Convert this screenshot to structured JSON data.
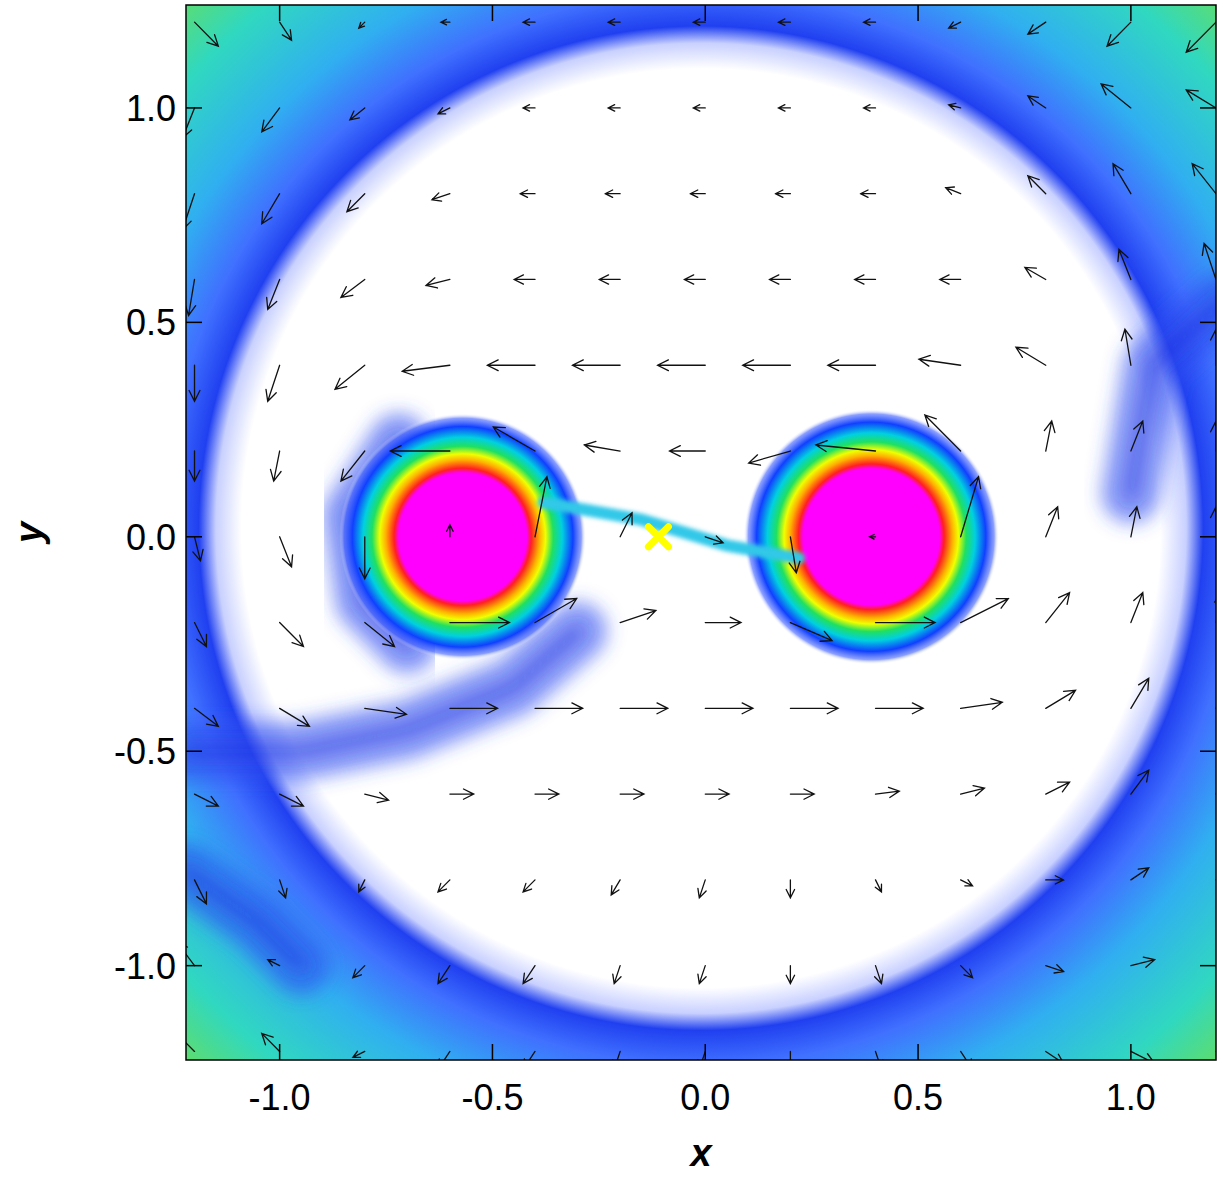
{
  "chart_data": {
    "type": "vector_field",
    "x_label": "x",
    "y_label": "y",
    "xlim": [
      -1.22,
      1.2
    ],
    "ylim": [
      -1.22,
      1.24
    ],
    "xticks": [
      {
        "value": -1,
        "label": "-1.0"
      },
      {
        "value": -0.5,
        "label": "-0.5"
      },
      {
        "value": 0,
        "label": "0.0"
      },
      {
        "value": 0.5,
        "label": "0.5"
      },
      {
        "value": 1,
        "label": "1.0"
      }
    ],
    "yticks": [
      {
        "value": -1,
        "label": "-1.0"
      },
      {
        "value": -0.5,
        "label": "-0.5"
      },
      {
        "value": 0,
        "label": "0.0"
      },
      {
        "value": 0.5,
        "label": "0.5"
      },
      {
        "value": 1,
        "label": "1.0"
      }
    ],
    "density": {
      "stars": [
        {
          "x": -0.57,
          "y": 0.0,
          "core": 0.15,
          "radius": 0.29
        },
        {
          "x": 0.39,
          "y": 0.0,
          "core": 0.16,
          "radius": 0.3
        }
      ],
      "ring": {
        "x": -0.01,
        "y": 0.02,
        "radius": 1.2
      },
      "arms": [
        {
          "x": [
            -0.3,
            -0.45,
            -0.7,
            -0.95,
            -1.22
          ],
          "y": [
            -0.22,
            -0.35,
            -0.45,
            -0.5,
            -0.5
          ]
        },
        {
          "x": [
            -0.72,
            -0.83,
            -0.8,
            -0.7
          ],
          "y": [
            0.22,
            0.05,
            -0.15,
            -0.25
          ]
        },
        {
          "x": [
            -1.22,
            -1.05,
            -0.95
          ],
          "y": [
            -0.78,
            -0.9,
            -1.0
          ]
        },
        {
          "x": [
            1.22,
            1.05,
            1.0
          ],
          "y": [
            0.55,
            0.4,
            0.1
          ]
        }
      ],
      "stream": {
        "x": [
          -0.38,
          -0.15,
          0.05,
          0.22
        ],
        "y": [
          0.08,
          0.04,
          -0.02,
          -0.05
        ]
      }
    },
    "points": [
      {
        "x": -0.11,
        "y": 0.0,
        "color": "#ffff00",
        "marker": "x"
      }
    ],
    "vectors": {
      "x": [
        -1.2,
        -1.0,
        -0.8,
        -0.6,
        -0.4,
        -0.2,
        0,
        0.2,
        0.4,
        0.6,
        0.8,
        1.0,
        1.2
      ],
      "y": [
        1.2,
        1.0,
        0.8,
        0.6,
        0.4,
        0.2,
        0,
        -0.2,
        -0.4,
        -0.6,
        -0.8,
        -1.0,
        -1.2
      ],
      "u": [
        [
          0.04,
          0.02,
          -0.01,
          -0.015,
          -0.02,
          -0.02,
          -0.02,
          -0.02,
          -0.02,
          -0.02,
          -0.03,
          -0.04,
          -0.05
        ],
        [
          -0.02,
          -0.03,
          -0.025,
          -0.02,
          -0.02,
          -0.02,
          -0.02,
          -0.02,
          -0.02,
          -0.02,
          -0.03,
          -0.05,
          -0.05
        ],
        [
          -0.02,
          -0.03,
          -0.03,
          -0.03,
          -0.025,
          -0.025,
          -0.025,
          -0.025,
          -0.025,
          -0.025,
          -0.03,
          -0.03,
          -0.04
        ],
        [
          -0.01,
          -0.02,
          -0.04,
          -0.04,
          -0.035,
          -0.035,
          -0.035,
          -0.035,
          -0.035,
          -0.035,
          -0.035,
          -0.02,
          -0.02
        ],
        [
          0,
          -0.02,
          -0.05,
          -0.08,
          -0.08,
          -0.08,
          -0.08,
          -0.08,
          -0.08,
          -0.07,
          -0.05,
          -0.01,
          0
        ],
        [
          0,
          -0.01,
          -0.04,
          -0.1,
          -0.07,
          -0.06,
          -0.06,
          -0.07,
          -0.1,
          -0.06,
          0.01,
          0.02,
          0
        ],
        [
          0.01,
          0.02,
          0,
          0,
          0.02,
          0.02,
          0.03,
          0.01,
          -0.01,
          0.03,
          0.02,
          0.01,
          0
        ],
        [
          0.02,
          0.04,
          0.05,
          0.1,
          0.07,
          0.06,
          0.06,
          0.07,
          0.1,
          0.08,
          0.04,
          0.02,
          0.01
        ],
        [
          0.04,
          0.05,
          0.07,
          0.08,
          0.08,
          0.08,
          0.08,
          0.08,
          0.08,
          0.07,
          0.05,
          0.03,
          0.02
        ],
        [
          0.04,
          0.04,
          0.04,
          0.04,
          0.04,
          0.04,
          0.04,
          0.04,
          0.04,
          0.04,
          0.04,
          0.03,
          0.02
        ],
        [
          0.02,
          0.01,
          -0.01,
          -0.02,
          -0.02,
          -0.015,
          -0.01,
          0,
          0.01,
          0.02,
          0.03,
          0.03,
          0.03
        ],
        [
          -0.03,
          -0.02,
          -0.02,
          -0.02,
          -0.02,
          -0.01,
          -0.01,
          0,
          0.01,
          0.02,
          0.03,
          0.04,
          0.04
        ],
        [
          -0.04,
          -0.03,
          -0.02,
          -0.02,
          -0.02,
          -0.01,
          -0.01,
          0,
          0.01,
          0.02,
          0.03,
          0.04,
          0.05
        ]
      ],
      "v": [
        [
          -0.04,
          -0.03,
          -0.01,
          0,
          0,
          0,
          0,
          0,
          0,
          -0.01,
          -0.02,
          -0.04,
          -0.05
        ],
        [
          -0.05,
          -0.04,
          -0.02,
          -0.01,
          0,
          0,
          0,
          0,
          0,
          0.005,
          0.02,
          0.04,
          0.03
        ],
        [
          -0.06,
          -0.05,
          -0.03,
          -0.01,
          0,
          0,
          0,
          0,
          0,
          0.01,
          0.03,
          0.05,
          0.05
        ],
        [
          -0.06,
          -0.05,
          -0.03,
          -0.01,
          0,
          0,
          0,
          0,
          0,
          0,
          0.02,
          0.05,
          0.06
        ],
        [
          -0.06,
          -0.06,
          -0.04,
          -0.01,
          0,
          0,
          0,
          0,
          0,
          0.01,
          0.03,
          0.06,
          0.06
        ],
        [
          -0.05,
          -0.05,
          -0.05,
          0,
          0.04,
          0.01,
          0,
          -0.02,
          0.01,
          0.06,
          0.05,
          0.05,
          0.05
        ],
        [
          -0.04,
          -0.05,
          -0.07,
          0.02,
          0.1,
          0.04,
          -0.01,
          -0.06,
          0,
          0.1,
          0.05,
          0.05,
          0.05
        ],
        [
          -0.04,
          -0.04,
          -0.04,
          0,
          0.04,
          0.02,
          0,
          -0.03,
          0,
          0.04,
          0.05,
          0.05,
          0.05
        ],
        [
          -0.03,
          -0.03,
          -0.01,
          0,
          0,
          0,
          0,
          0,
          0,
          0.01,
          0.03,
          0.05,
          0.05
        ],
        [
          -0.02,
          -0.02,
          -0.01,
          0,
          0,
          0,
          0,
          0,
          0.005,
          0.01,
          0.02,
          0.04,
          0.05
        ],
        [
          -0.04,
          -0.03,
          -0.02,
          -0.02,
          -0.02,
          -0.025,
          -0.03,
          -0.03,
          -0.02,
          -0.01,
          0,
          0.02,
          0.03
        ],
        [
          0.04,
          0.01,
          -0.02,
          -0.03,
          -0.03,
          -0.03,
          -0.03,
          -0.03,
          -0.03,
          -0.02,
          -0.01,
          0.01,
          0.03
        ],
        [
          0.04,
          0.03,
          -0.01,
          -0.03,
          -0.03,
          -0.03,
          -0.03,
          -0.03,
          -0.03,
          -0.03,
          -0.02,
          -0.02,
          -0.03
        ]
      ]
    }
  }
}
